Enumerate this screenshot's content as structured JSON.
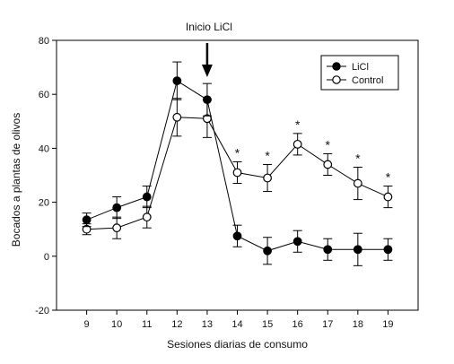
{
  "chart_data": {
    "type": "line",
    "x": [
      9,
      10,
      11,
      12,
      13,
      14,
      15,
      16,
      17,
      18,
      19
    ],
    "xticks": [
      "9",
      "10",
      "11",
      "12",
      "13",
      "14",
      "15",
      "16",
      "17",
      "18",
      "19"
    ],
    "xlabel": "Sesiones diarias de consumo",
    "ylabel": "Bocados a plantas de olivos",
    "ylim": [
      -20,
      80
    ],
    "yticks": [
      "-20",
      "0",
      "20",
      "40",
      "60",
      "80"
    ],
    "grid": false,
    "legend_position": "top-right",
    "series": [
      {
        "name": "LiCl",
        "marker": "filled-circle",
        "values": [
          13.5,
          18,
          22,
          65,
          58,
          7.5,
          2,
          5.5,
          2.5,
          2.5,
          2.5
        ],
        "errors": [
          2.5,
          4,
          4,
          7,
          6,
          4,
          5,
          4,
          4,
          6,
          4
        ]
      },
      {
        "name": "Control",
        "marker": "open-circle",
        "values": [
          10,
          10.5,
          14.5,
          51.5,
          51,
          31,
          29,
          41.5,
          34,
          27,
          22
        ],
        "errors": [
          2,
          4,
          4,
          7,
          7,
          4,
          5,
          4,
          4,
          6,
          4
        ]
      }
    ],
    "annotations": {
      "arrow_label": "Inicio LiCl",
      "arrow_at_x": 13,
      "significance_symbol": "*",
      "significance_at_x": [
        14,
        15,
        16,
        17,
        18,
        19
      ]
    },
    "colors": {
      "ink": "#000000",
      "open_fill": "#ffffff"
    }
  }
}
